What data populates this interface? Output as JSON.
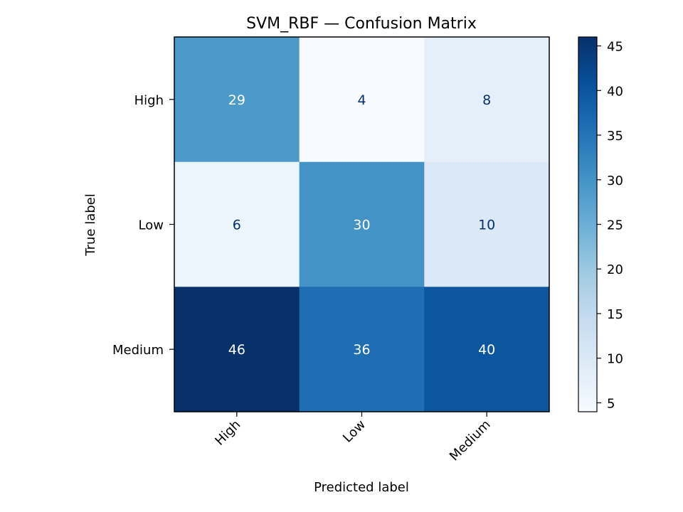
{
  "chart_data": {
    "type": "heatmap",
    "title": "SVM_RBF — Confusion Matrix",
    "xlabel": "Predicted label",
    "ylabel": "True label",
    "x_categories": [
      "High",
      "Low",
      "Medium"
    ],
    "y_categories": [
      "High",
      "Low",
      "Medium"
    ],
    "values": [
      [
        29,
        4,
        8
      ],
      [
        6,
        30,
        10
      ],
      [
        46,
        36,
        40
      ]
    ],
    "colormap": "Blues",
    "colorbar": {
      "range": [
        4,
        46
      ],
      "ticks": [
        5,
        10,
        15,
        20,
        25,
        30,
        35,
        40,
        45
      ]
    },
    "text_colors": {
      "dark": "#08306b",
      "light": "#ffffff"
    }
  }
}
